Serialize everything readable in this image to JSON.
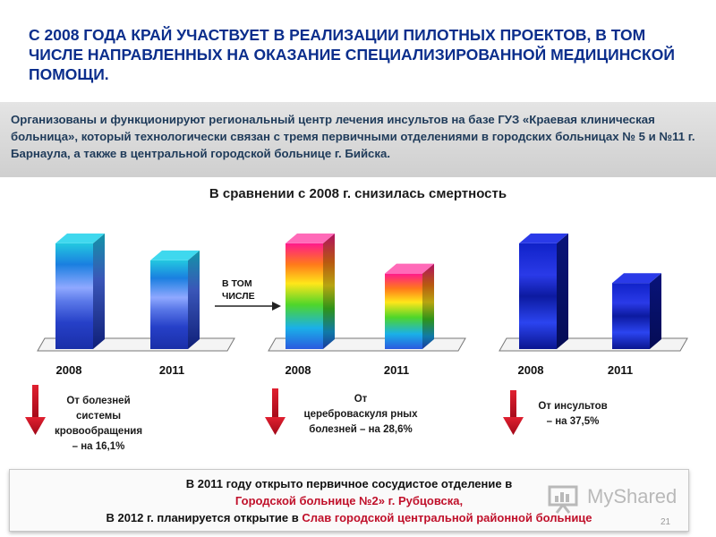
{
  "title": "С 2008 ГОДА КРАЙ УЧАСТВУЕТ В РЕАЛИЗАЦИИ ПИЛОТНЫХ ПРОЕКТОВ, В ТОМ ЧИСЛЕ НАПРАВЛЕННЫХ НА ОКАЗАНИЕ СПЕЦИАЛИЗИРОВАННОЙ МЕДИЦИНСКОЙ ПОМОЩИ.",
  "info": "Организованы и функционируют региональный центр лечения инсультов на базе ГУЗ «Краевая клиническая больница», который технологически связан с тремя первичными отделениями в городских больницах № 5 и №11 г. Барнаула, а также в центральной городской больнице г. Бийска.",
  "subtitle": "В сравнении с 2008 г. снизилась смертность",
  "inset_label": [
    "В ТОМ",
    "ЧИСЛЕ"
  ],
  "notes": {
    "circulatory": [
      "От болезней",
      "системы",
      "кровообращения",
      "– на 16,1%"
    ],
    "cerebrovascular": [
      "От",
      "цереброваскуля рных",
      "болезней – на 28,6%"
    ],
    "stroke": [
      "От инсультов",
      "– на 37,5%"
    ]
  },
  "bottom": {
    "line1": "В 2011 году открыто первичное сосудистое отделение в",
    "line2": "Городской больнице №2» г. Рубцовска,",
    "line3_dark": "В 2012 г. планируется открытие в",
    "line3_red": "Слав городской центральной районной больнице"
  },
  "watermark": "MyShared",
  "page_number": "21",
  "colors": {
    "title": "#0b2e8c",
    "accent_red": "#c0102a"
  },
  "chart_data": [
    {
      "type": "bar",
      "name": "circulatory",
      "categories": [
        "2008",
        "2011"
      ],
      "values": [
        100,
        83.9
      ],
      "ylim": [
        0,
        105
      ],
      "ylabel": "",
      "xlabel": "",
      "title": ""
    },
    {
      "type": "bar",
      "name": "cerebrovascular",
      "categories": [
        "2008",
        "2011"
      ],
      "values": [
        100,
        71.4
      ],
      "ylim": [
        0,
        105
      ],
      "ylabel": "",
      "xlabel": "",
      "title": ""
    },
    {
      "type": "bar",
      "name": "stroke",
      "categories": [
        "2008",
        "2011"
      ],
      "values": [
        100,
        62.5
      ],
      "ylim": [
        0,
        105
      ],
      "ylabel": "",
      "xlabel": "",
      "title": ""
    }
  ]
}
